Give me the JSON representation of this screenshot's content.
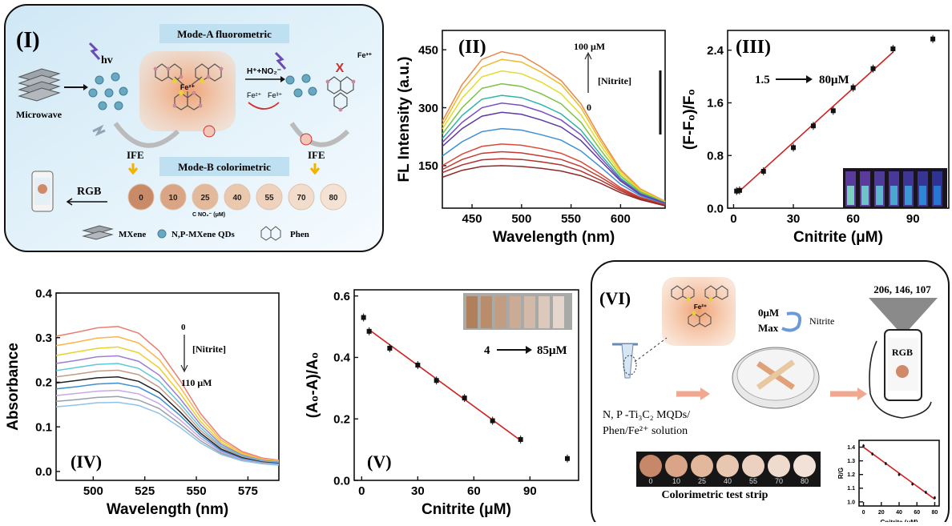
{
  "panel_I": {
    "label": "(I)",
    "mode_a": "Mode-A fluorometric",
    "mode_b": "Mode-B colorimetric",
    "hv": "hv",
    "microwave": "Microwave",
    "fe2": "Fe²⁺",
    "fe3": "Fe³⁺",
    "reagent": "H⁺+NO₂⁻",
    "redox_left": "Fe²⁺",
    "redox_right": "Fe³⁺",
    "ife_left": "IFE",
    "ife_right": "IFE",
    "rgb": "RGB",
    "conc_unit": "C NO₂⁻ (μM)",
    "dots": [
      "0",
      "10",
      "25",
      "40",
      "55",
      "70",
      "80"
    ],
    "dot_colors": [
      "#c98a68",
      "#d9a585",
      "#e3b99b",
      "#eac8ae",
      "#efd2bd",
      "#f2dccb",
      "#f4e2d4"
    ],
    "legend": {
      "mxene": "MXene",
      "qds": "N,P-MXene QDs",
      "phen": "Phen"
    }
  },
  "panel_II": {
    "label": "(II)",
    "ylabel": "FL Intensity (a.u.)",
    "xlabel": "Wavelength (nm)",
    "anno_top": "100  μM",
    "anno_mid": "[Nitrite]",
    "anno_bot": "0"
  },
  "panel_III": {
    "label": "(III)",
    "ylabel": "(F-F₀)/F₀",
    "xlabel": "Cnitrite (μM)",
    "range_start": "1.5",
    "range_end": "80μM"
  },
  "panel_IV": {
    "label": "(IV)",
    "ylabel": "Absorbance",
    "xlabel": "Wavelength (nm)",
    "anno_top": "0",
    "anno_mid": "[Nitrite]",
    "anno_bot": "110 μM"
  },
  "panel_V": {
    "label": "(V)",
    "ylabel": "(A₀-A)/A₀",
    "xlabel": "Cnitrite (μM)",
    "range_start": "4",
    "range_end": "85μM"
  },
  "panel_VI": {
    "label": "(VI)",
    "conc": "0μM",
    "max": "Max",
    "nitrite": "Nitrite",
    "rgb_values": "206, 146, 107",
    "rgb": "RGB",
    "solution_line1": "N, P -Ti₃C₂ MQDs/",
    "solution_line2": "Phen/Fe²⁺ solution",
    "strip_title": "Colorimetric test strip",
    "strip_labels": [
      "0",
      "10",
      "25",
      "40",
      "55",
      "70",
      "80"
    ],
    "strip_colors": [
      "#c7886a",
      "#d9a487",
      "#e2b79c",
      "#e8c6b0",
      "#ecd1c0",
      "#efdace",
      "#f1e1d6"
    ],
    "mini_ylabel": "R/G",
    "mini_xlabel": "Cnitrite (μM)",
    "mini_yticks": [
      "1.4",
      "1.3",
      "1.2",
      "1.1",
      "1.0"
    ],
    "mini_xticks": [
      "0",
      "20",
      "40",
      "60",
      "80"
    ]
  },
  "chart_data": [
    {
      "panel": "II",
      "type": "line",
      "xlabel": "Wavelength (nm)",
      "ylabel": "FL Intensity (a.u.)",
      "xlim": [
        420,
        645
      ],
      "ylim": [
        40,
        500
      ],
      "xticks": [
        450,
        500,
        550,
        600
      ],
      "yticks": [
        150,
        300,
        450
      ],
      "x": [
        420,
        440,
        460,
        480,
        500,
        520,
        540,
        560,
        580,
        600,
        620,
        645
      ],
      "series": [
        {
          "color": "#e8894a",
          "values": [
            265,
            360,
            425,
            445,
            435,
            405,
            370,
            310,
            220,
            140,
            90,
            58
          ]
        },
        {
          "color": "#f0b92c",
          "values": [
            255,
            345,
            405,
            425,
            418,
            392,
            360,
            300,
            212,
            136,
            88,
            57
          ]
        },
        {
          "color": "#e3dc2a",
          "values": [
            245,
            325,
            380,
            395,
            388,
            366,
            336,
            282,
            202,
            130,
            85,
            56
          ]
        },
        {
          "color": "#7cc243",
          "values": [
            232,
            300,
            350,
            362,
            355,
            336,
            310,
            262,
            190,
            124,
            82,
            55
          ]
        },
        {
          "color": "#2db6a8",
          "values": [
            220,
            280,
            322,
            332,
            326,
            308,
            284,
            242,
            178,
            118,
            79,
            54
          ]
        },
        {
          "color": "#7a4fc1",
          "values": [
            210,
            262,
            300,
            312,
            306,
            290,
            268,
            230,
            170,
            114,
            77,
            53
          ]
        },
        {
          "color": "#5b3aa8",
          "values": [
            200,
            246,
            278,
            288,
            283,
            268,
            250,
            215,
            162,
            110,
            75,
            52
          ]
        },
        {
          "color": "#3d8fd6",
          "values": [
            175,
            212,
            238,
            246,
            242,
            230,
            216,
            188,
            146,
            102,
            72,
            50
          ]
        },
        {
          "color": "#d94a3c",
          "values": [
            150,
            180,
            200,
            206,
            203,
            194,
            182,
            160,
            128,
            93,
            68,
            49
          ]
        },
        {
          "color": "#c23a30",
          "values": [
            140,
            166,
            182,
            186,
            183,
            175,
            166,
            148,
            120,
            89,
            66,
            48
          ]
        },
        {
          "color": "#b0302a",
          "values": [
            132,
            152,
            165,
            168,
            166,
            160,
            152,
            136,
            112,
            85,
            64,
            47
          ]
        },
        {
          "color": "#8f2a26",
          "values": [
            120,
            138,
            148,
            150,
            148,
            143,
            136,
            124,
            104,
            80,
            62,
            46
          ]
        }
      ]
    },
    {
      "panel": "III",
      "type": "scatter",
      "xlabel": "Cnitrite (μM)",
      "ylabel": "(F-F₀)/F₀",
      "xlim": [
        -3,
        108
      ],
      "ylim": [
        0.0,
        2.7
      ],
      "xticks": [
        0,
        30,
        60,
        90
      ],
      "yticks": [
        0.0,
        0.8,
        1.6,
        2.4
      ],
      "x": [
        1.5,
        3,
        15,
        30,
        40,
        50,
        60,
        70,
        80,
        100
      ],
      "y": [
        0.26,
        0.27,
        0.56,
        0.92,
        1.25,
        1.48,
        1.83,
        2.12,
        2.42,
        2.57
      ],
      "fit": {
        "x": [
          1.5,
          80
        ],
        "y": [
          0.22,
          2.37
        ]
      }
    },
    {
      "panel": "IV",
      "type": "line",
      "xlabel": "Wavelength (nm)",
      "ylabel": "Absorbance",
      "xlim": [
        482,
        590
      ],
      "ylim": [
        -0.02,
        0.4
      ],
      "xticks": [
        500,
        525,
        550,
        575
      ],
      "yticks": [
        0.0,
        0.1,
        0.2,
        0.3,
        0.4
      ],
      "x": [
        482,
        492,
        502,
        512,
        522,
        532,
        542,
        552,
        562,
        572,
        582,
        590
      ],
      "series": [
        {
          "color": "#e87f74",
          "values": [
            0.303,
            0.312,
            0.322,
            0.325,
            0.31,
            0.27,
            0.205,
            0.13,
            0.075,
            0.045,
            0.03,
            0.025
          ]
        },
        {
          "color": "#ffb347",
          "values": [
            0.282,
            0.29,
            0.299,
            0.302,
            0.288,
            0.251,
            0.19,
            0.121,
            0.07,
            0.042,
            0.028,
            0.024
          ]
        },
        {
          "color": "#e8d22c",
          "values": [
            0.26,
            0.268,
            0.276,
            0.279,
            0.266,
            0.232,
            0.176,
            0.112,
            0.065,
            0.039,
            0.026,
            0.022
          ]
        },
        {
          "color": "#9b7fd4",
          "values": [
            0.242,
            0.249,
            0.257,
            0.259,
            0.247,
            0.216,
            0.164,
            0.105,
            0.061,
            0.037,
            0.025,
            0.021
          ]
        },
        {
          "color": "#5ec7d9",
          "values": [
            0.226,
            0.233,
            0.24,
            0.242,
            0.231,
            0.202,
            0.153,
            0.098,
            0.057,
            0.035,
            0.024,
            0.02
          ]
        },
        {
          "color": "#c69a8a",
          "values": [
            0.212,
            0.218,
            0.225,
            0.227,
            0.217,
            0.189,
            0.144,
            0.092,
            0.054,
            0.033,
            0.022,
            0.019
          ]
        },
        {
          "color": "#222222",
          "values": [
            0.198,
            0.204,
            0.21,
            0.212,
            0.202,
            0.177,
            0.134,
            0.086,
            0.05,
            0.031,
            0.021,
            0.018
          ]
        },
        {
          "color": "#3e8ed0",
          "values": [
            0.185,
            0.19,
            0.196,
            0.198,
            0.189,
            0.165,
            0.126,
            0.081,
            0.047,
            0.029,
            0.02,
            0.017
          ]
        },
        {
          "color": "#c8a8e6",
          "values": [
            0.17,
            0.175,
            0.18,
            0.182,
            0.174,
            0.152,
            0.116,
            0.075,
            0.044,
            0.027,
            0.019,
            0.016
          ]
        },
        {
          "color": "#9aa0a8",
          "values": [
            0.157,
            0.161,
            0.166,
            0.168,
            0.16,
            0.141,
            0.107,
            0.069,
            0.041,
            0.025,
            0.018,
            0.015
          ]
        },
        {
          "color": "#8fc3e8",
          "values": [
            0.145,
            0.149,
            0.154,
            0.155,
            0.148,
            0.13,
            0.099,
            0.064,
            0.038,
            0.024,
            0.017,
            0.014
          ]
        }
      ]
    },
    {
      "panel": "V",
      "type": "scatter",
      "xlabel": "Cnitrite (μM)",
      "ylabel": "(A₀-A)/A₀",
      "xlim": [
        -4,
        116
      ],
      "ylim": [
        0.0,
        0.62
      ],
      "xticks": [
        0,
        30,
        60,
        90
      ],
      "yticks": [
        0.0,
        0.2,
        0.4,
        0.6
      ],
      "x": [
        1,
        4,
        15,
        30,
        40,
        55,
        70,
        85,
        110
      ],
      "y": [
        0.53,
        0.485,
        0.43,
        0.375,
        0.325,
        0.268,
        0.194,
        0.133,
        0.071
      ],
      "fit": {
        "x": [
          4,
          85
        ],
        "y": [
          0.49,
          0.13
        ]
      }
    },
    {
      "panel": "VI-inset",
      "type": "scatter",
      "xlabel": "Cnitrite (μM)",
      "ylabel": "R/G",
      "xlim": [
        -5,
        85
      ],
      "ylim": [
        0.97,
        1.45
      ],
      "xticks": [
        0,
        20,
        40,
        60,
        80
      ],
      "yticks": [
        1.0,
        1.1,
        1.2,
        1.3,
        1.4
      ],
      "x": [
        0,
        10,
        25,
        40,
        55,
        70,
        80
      ],
      "y": [
        1.41,
        1.35,
        1.28,
        1.2,
        1.13,
        1.07,
        1.03
      ],
      "fit": {
        "x": [
          0,
          80
        ],
        "y": [
          1.4,
          1.02
        ]
      }
    }
  ]
}
